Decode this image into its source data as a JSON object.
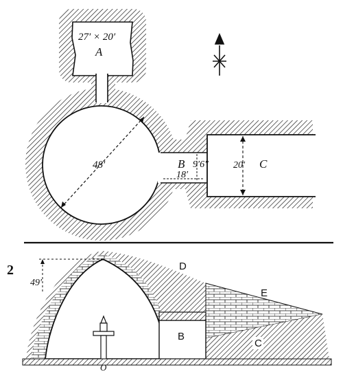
{
  "plan": {
    "room_a": {
      "dimensions": "27′ × 20′",
      "letter": "A"
    },
    "chamber_diameter": "48′",
    "passage_b": {
      "letter": "B",
      "width": "9′6″",
      "length": "18′"
    },
    "passage_c": {
      "letter": "C",
      "width": "20′"
    }
  },
  "section": {
    "figure_number": "2",
    "height": "49′",
    "labels": {
      "d": "D",
      "e": "E",
      "b": "B",
      "c": "C",
      "o": "O"
    }
  },
  "colors": {
    "ink": "#111111",
    "paper": "#ffffff"
  },
  "icons": [
    "north-arrow-icon"
  ]
}
